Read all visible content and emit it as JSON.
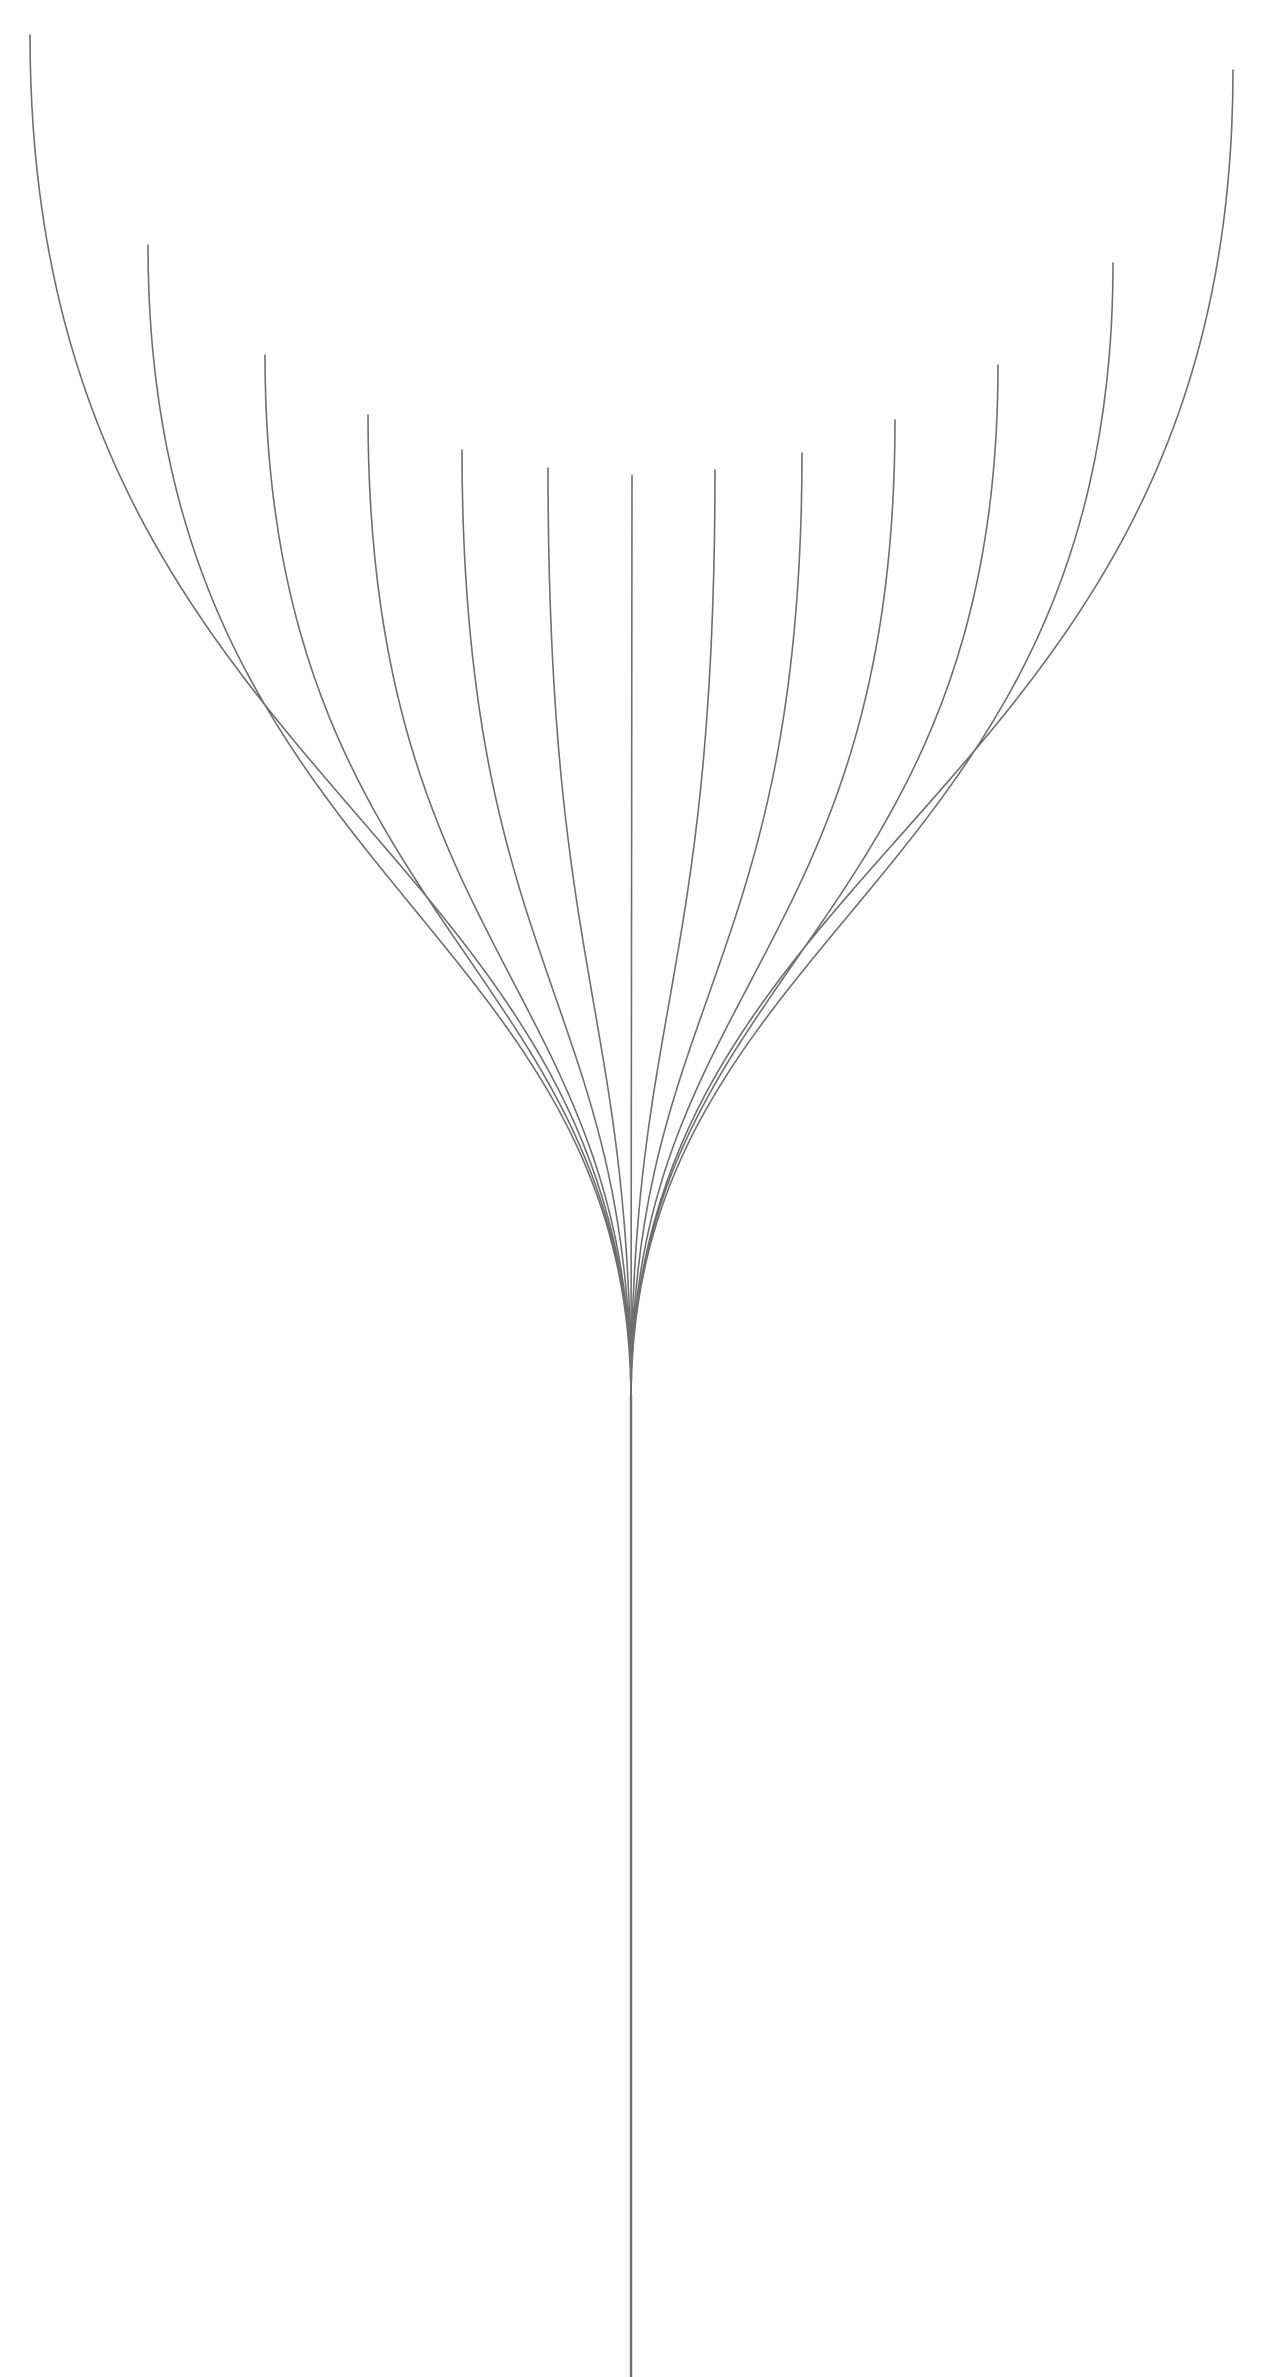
{
  "diagram": {
    "type": "fan-tree",
    "stroke_color": "#6f6f6f",
    "branch_count": 13,
    "labels": []
  }
}
